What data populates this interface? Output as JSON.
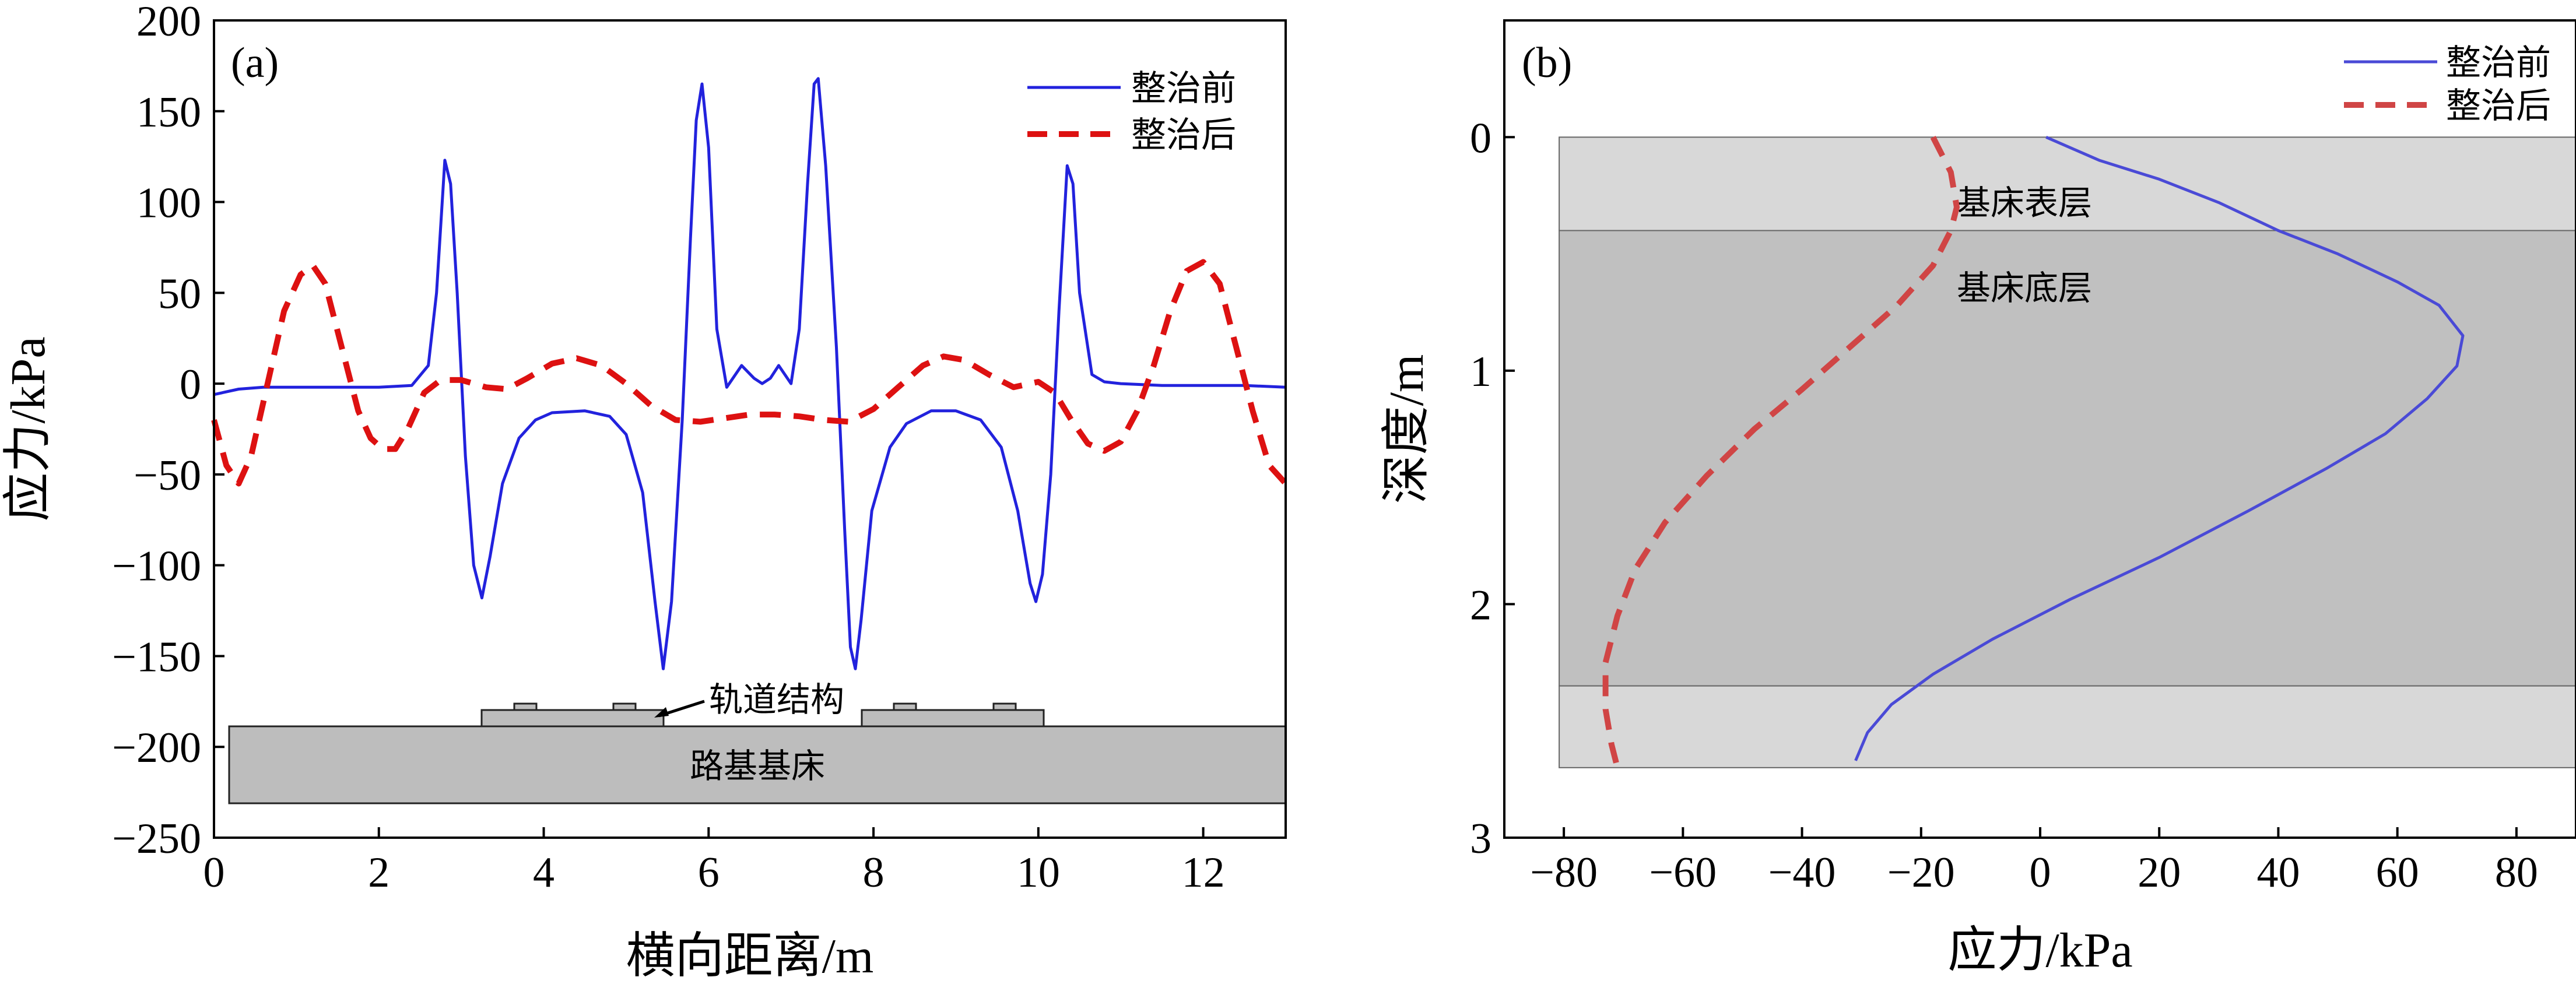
{
  "chart_data": [
    {
      "panel": "(a)",
      "type": "line",
      "xlabel": "横向距离/m",
      "ylabel": "应力/kPa",
      "xlim": [
        0,
        13
      ],
      "ylim": [
        -250,
        200
      ],
      "xticks": [
        0,
        2,
        4,
        6,
        8,
        10,
        12
      ],
      "yticks": [
        -250,
        -200,
        -150,
        -100,
        -50,
        0,
        50,
        100,
        150,
        200
      ],
      "legend": {
        "position": "top-right",
        "entries": [
          "整治前",
          "整治后"
        ]
      },
      "annotations": {
        "track": "轨道结构",
        "roadbed": "路基基床"
      },
      "series": [
        {
          "name": "整治前",
          "color": "#2222dd",
          "style": "solid",
          "points": [
            [
              0,
              -6
            ],
            [
              0.3,
              -3
            ],
            [
              0.6,
              -2
            ],
            [
              1.0,
              -2
            ],
            [
              1.5,
              -2
            ],
            [
              2.0,
              -2
            ],
            [
              2.4,
              -1
            ],
            [
              2.6,
              10
            ],
            [
              2.7,
              50
            ],
            [
              2.8,
              123
            ],
            [
              2.87,
              110
            ],
            [
              2.95,
              50
            ],
            [
              3.05,
              -40
            ],
            [
              3.15,
              -100
            ],
            [
              3.25,
              -118
            ],
            [
              3.35,
              -95
            ],
            [
              3.5,
              -55
            ],
            [
              3.7,
              -30
            ],
            [
              3.9,
              -20
            ],
            [
              4.1,
              -16
            ],
            [
              4.5,
              -15
            ],
            [
              4.8,
              -18
            ],
            [
              5.0,
              -28
            ],
            [
              5.2,
              -60
            ],
            [
              5.35,
              -120
            ],
            [
              5.45,
              -157
            ],
            [
              5.55,
              -120
            ],
            [
              5.68,
              -20
            ],
            [
              5.78,
              80
            ],
            [
              5.85,
              145
            ],
            [
              5.92,
              165
            ],
            [
              6.0,
              130
            ],
            [
              6.1,
              30
            ],
            [
              6.22,
              -2
            ],
            [
              6.4,
              10
            ],
            [
              6.55,
              3
            ],
            [
              6.65,
              0
            ],
            [
              6.75,
              3
            ],
            [
              6.85,
              10
            ],
            [
              7.0,
              0
            ],
            [
              7.1,
              30
            ],
            [
              7.2,
              110
            ],
            [
              7.28,
              165
            ],
            [
              7.33,
              168
            ],
            [
              7.42,
              120
            ],
            [
              7.55,
              20
            ],
            [
              7.65,
              -80
            ],
            [
              7.72,
              -145
            ],
            [
              7.78,
              -157
            ],
            [
              7.85,
              -130
            ],
            [
              7.98,
              -70
            ],
            [
              8.2,
              -35
            ],
            [
              8.4,
              -22
            ],
            [
              8.7,
              -15
            ],
            [
              9.0,
              -15
            ],
            [
              9.3,
              -20
            ],
            [
              9.55,
              -35
            ],
            [
              9.75,
              -70
            ],
            [
              9.9,
              -110
            ],
            [
              9.97,
              -120
            ],
            [
              10.05,
              -105
            ],
            [
              10.15,
              -50
            ],
            [
              10.25,
              40
            ],
            [
              10.35,
              120
            ],
            [
              10.42,
              110
            ],
            [
              10.5,
              50
            ],
            [
              10.65,
              5
            ],
            [
              10.8,
              1
            ],
            [
              11.0,
              0
            ],
            [
              11.5,
              -1
            ],
            [
              12.0,
              -1
            ],
            [
              12.5,
              -1
            ],
            [
              13.0,
              -2
            ]
          ]
        },
        {
          "name": "整治后",
          "color": "#dd1111",
          "style": "dashed",
          "points": [
            [
              0,
              -20
            ],
            [
              0.15,
              -45
            ],
            [
              0.3,
              -55
            ],
            [
              0.45,
              -40
            ],
            [
              0.65,
              0
            ],
            [
              0.85,
              40
            ],
            [
              1.05,
              60
            ],
            [
              1.2,
              65
            ],
            [
              1.35,
              55
            ],
            [
              1.55,
              20
            ],
            [
              1.75,
              -15
            ],
            [
              1.9,
              -30
            ],
            [
              2.05,
              -36
            ],
            [
              2.2,
              -36
            ],
            [
              2.35,
              -25
            ],
            [
              2.55,
              -5
            ],
            [
              2.75,
              2
            ],
            [
              3.0,
              2
            ],
            [
              3.3,
              -2
            ],
            [
              3.55,
              -3
            ],
            [
              3.8,
              3
            ],
            [
              4.1,
              11
            ],
            [
              4.4,
              14
            ],
            [
              4.7,
              10
            ],
            [
              5.0,
              0
            ],
            [
              5.3,
              -12
            ],
            [
              5.6,
              -20
            ],
            [
              5.9,
              -21
            ],
            [
              6.2,
              -19
            ],
            [
              6.5,
              -17
            ],
            [
              6.8,
              -17
            ],
            [
              7.1,
              -18
            ],
            [
              7.4,
              -20
            ],
            [
              7.7,
              -21
            ],
            [
              8.0,
              -14
            ],
            [
              8.3,
              -2
            ],
            [
              8.6,
              10
            ],
            [
              8.85,
              15
            ],
            [
              9.1,
              13
            ],
            [
              9.4,
              5
            ],
            [
              9.7,
              -2
            ],
            [
              10.0,
              1
            ],
            [
              10.2,
              -5
            ],
            [
              10.4,
              -20
            ],
            [
              10.6,
              -33
            ],
            [
              10.8,
              -37
            ],
            [
              11.0,
              -32
            ],
            [
              11.2,
              -15
            ],
            [
              11.4,
              10
            ],
            [
              11.6,
              40
            ],
            [
              11.8,
              62
            ],
            [
              12.0,
              67
            ],
            [
              12.2,
              55
            ],
            [
              12.4,
              20
            ],
            [
              12.6,
              -15
            ],
            [
              12.8,
              -45
            ],
            [
              13.0,
              -55
            ]
          ]
        }
      ]
    },
    {
      "panel": "(b)",
      "type": "line",
      "xlabel": "应力/kPa",
      "ylabel": "深度/m",
      "xlim": [
        -90,
        90
      ],
      "ylim": [
        3,
        -0.5
      ],
      "xticks": [
        -80,
        -60,
        -40,
        -20,
        0,
        20,
        40,
        60,
        80
      ],
      "yticks": [
        0,
        1,
        2,
        3
      ],
      "legend": {
        "position": "top-right",
        "entries": [
          "整治前",
          "整治后"
        ]
      },
      "layers": [
        {
          "name": "基床表层",
          "top": 0,
          "bottom": 0.4,
          "color": "#d8d8d8"
        },
        {
          "name": "基床底层",
          "top": 0.4,
          "bottom": 2.35,
          "color": "#c0c0c0"
        },
        {
          "name": "",
          "top": 2.35,
          "bottom": 2.7,
          "color": "#d8d8d8"
        }
      ],
      "series": [
        {
          "name": "整治前",
          "color": "#4a4ad6",
          "style": "solid",
          "points": [
            [
              1,
              0
            ],
            [
              10,
              0.1
            ],
            [
              20,
              0.18
            ],
            [
              30,
              0.28
            ],
            [
              40,
              0.4
            ],
            [
              50,
              0.5
            ],
            [
              60,
              0.62
            ],
            [
              67,
              0.72
            ],
            [
              71,
              0.85
            ],
            [
              70,
              0.98
            ],
            [
              65,
              1.12
            ],
            [
              58,
              1.27
            ],
            [
              48,
              1.42
            ],
            [
              35,
              1.6
            ],
            [
              20,
              1.8
            ],
            [
              5,
              1.98
            ],
            [
              -8,
              2.15
            ],
            [
              -18,
              2.3
            ],
            [
              -25,
              2.43
            ],
            [
              -29,
              2.55
            ],
            [
              -31,
              2.67
            ]
          ]
        },
        {
          "name": "整治后",
          "color": "#d04545",
          "style": "dashed",
          "points": [
            [
              -18,
              0
            ],
            [
              -15,
              0.15
            ],
            [
              -14,
              0.3
            ],
            [
              -15,
              0.4
            ],
            [
              -18,
              0.55
            ],
            [
              -24,
              0.72
            ],
            [
              -32,
              0.9
            ],
            [
              -40,
              1.08
            ],
            [
              -48,
              1.25
            ],
            [
              -56,
              1.45
            ],
            [
              -63,
              1.65
            ],
            [
              -68,
              1.85
            ],
            [
              -71,
              2.05
            ],
            [
              -73,
              2.25
            ],
            [
              -73,
              2.45
            ],
            [
              -72,
              2.6
            ],
            [
              -71,
              2.7
            ]
          ]
        }
      ]
    }
  ]
}
